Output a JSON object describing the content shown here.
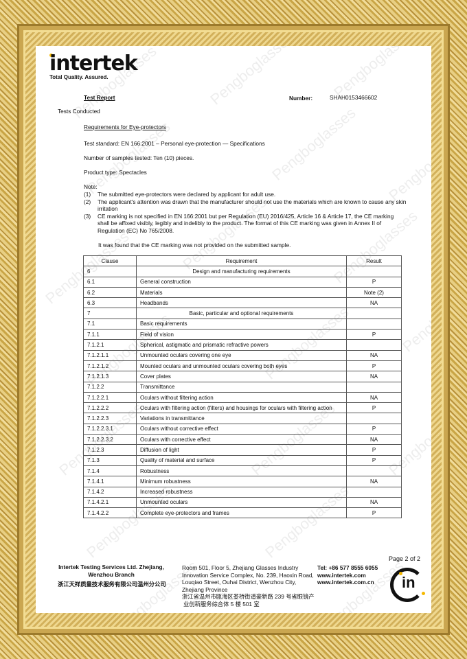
{
  "header": {
    "logo_text": "intertek",
    "tagline": "Total Quality. Assured.",
    "report_title": "Test Report",
    "number_label": "Number:",
    "number_value": "SHAH0153466602",
    "tests_conducted": "Tests Conducted"
  },
  "section": {
    "title": "Requirements for Eye-protectors",
    "standard": "Test standard: EN 166:2001 – Personal eye-protection — Specifications",
    "samples": "Number of samples tested: Ten (10) pieces.",
    "product_type": "Product type: Spectacles",
    "note_label": "Note:",
    "notes": [
      {
        "num": "(1)",
        "text": "The submitted eye-protectors were declared by applicant for adult use."
      },
      {
        "num": "(2)",
        "text": "The applicant's attention was drawn that the manufacturer should not use the materials which are known to cause any skin irritation"
      },
      {
        "num": "(3)",
        "text": "CE marking is not specified in EN 166:2001 but per Regulation (EU) 2016/425, Article 16 & Article 17, the CE marking shall be affixed visibly, legibly and indelibly to the product. The format of this CE marking was given in Annex II of Regulation (EC) No 765/2008."
      }
    ],
    "finding": "It was found that the CE marking was not provided on the submitted sample."
  },
  "table": {
    "headers": [
      "Clause",
      "Requirement",
      "Result"
    ],
    "rows": [
      [
        "6",
        "Design and manufacturing requirements",
        ""
      ],
      [
        "6.1",
        "General construction",
        "P"
      ],
      [
        "6.2",
        "Materials",
        "Note (2)"
      ],
      [
        "6.3",
        "Headbands",
        "NA"
      ],
      [
        "7",
        "Basic, particular and optional requirements",
        ""
      ],
      [
        "7.1",
        "Basic requirements",
        ""
      ],
      [
        "7.1.1",
        "Field of vision",
        "P"
      ],
      [
        "7.1.2.1",
        "Spherical, astigmatic and prismatic refractive powers",
        ""
      ],
      [
        "7.1.2.1.1",
        "Unmounted oculars covering one eye",
        "NA"
      ],
      [
        "7.1.2.1.2",
        "Mounted oculars and unmounted oculars covering both eyes",
        "P"
      ],
      [
        "7.1.2.1.3",
        "Cover plates",
        "NA"
      ],
      [
        "7.1.2.2",
        "Transmittance",
        ""
      ],
      [
        "7.1.2.2.1",
        "Oculars without filtering action",
        "NA"
      ],
      [
        "7.1.2.2.2",
        "Oculars with filtering action (filters) and housings for oculars with filtering action",
        "P"
      ],
      [
        "7.1.2.2.3",
        "Variations in transmittance",
        ""
      ],
      [
        "7.1.2.2.3.1",
        "Oculars without corrective effect",
        "P"
      ],
      [
        "7.1.2.2.3.2",
        "Oculars with corrective effect",
        "NA"
      ],
      [
        "7.1.2.3",
        "Diffusion of light",
        "P"
      ],
      [
        "7.1.3",
        "Quality of material and surface",
        "P"
      ],
      [
        "7.1.4",
        "Robustness",
        ""
      ],
      [
        "7.1.4.1",
        "Minimum robustness",
        "NA"
      ],
      [
        "7.1.4.2",
        "Increased robustness",
        ""
      ],
      [
        "7.1.4.2.1",
        "Unmounted oculars",
        "NA"
      ],
      [
        "7.1.4.2.2",
        "Complete eye-protectors and frames",
        "P"
      ]
    ]
  },
  "footer": {
    "company": "Intertek Testing Services Ltd. Zhejiang,",
    "branch": "Wenzhou Branch",
    "company_cn": "浙江天祥质量技术服务有限公司温州分公司",
    "address": [
      "Room 501, Floor 5, Zhejiang Glasses Industry",
      "Innovation Service Complex, No. 239, Haoxin Road,",
      "Louqiao Street, Ouhai District, Wenzhou City,",
      "Zhejiang Province"
    ],
    "address_cn": [
      "浙江省温州市瓯海区娄桥街道豪新路 239 号省眼镜产",
      "业创新服务综合体 5 楼 501 室"
    ],
    "tel": "Tel: +86 577 8555 6055",
    "web1": "www.intertek.com",
    "web2": "www.intertek.com.cn",
    "page": "Page 2 of 2",
    "seal_text": "in"
  },
  "watermark": "Pengboglasses",
  "colors": {
    "frame": "#d9b65a",
    "accent": "#f5b800"
  }
}
